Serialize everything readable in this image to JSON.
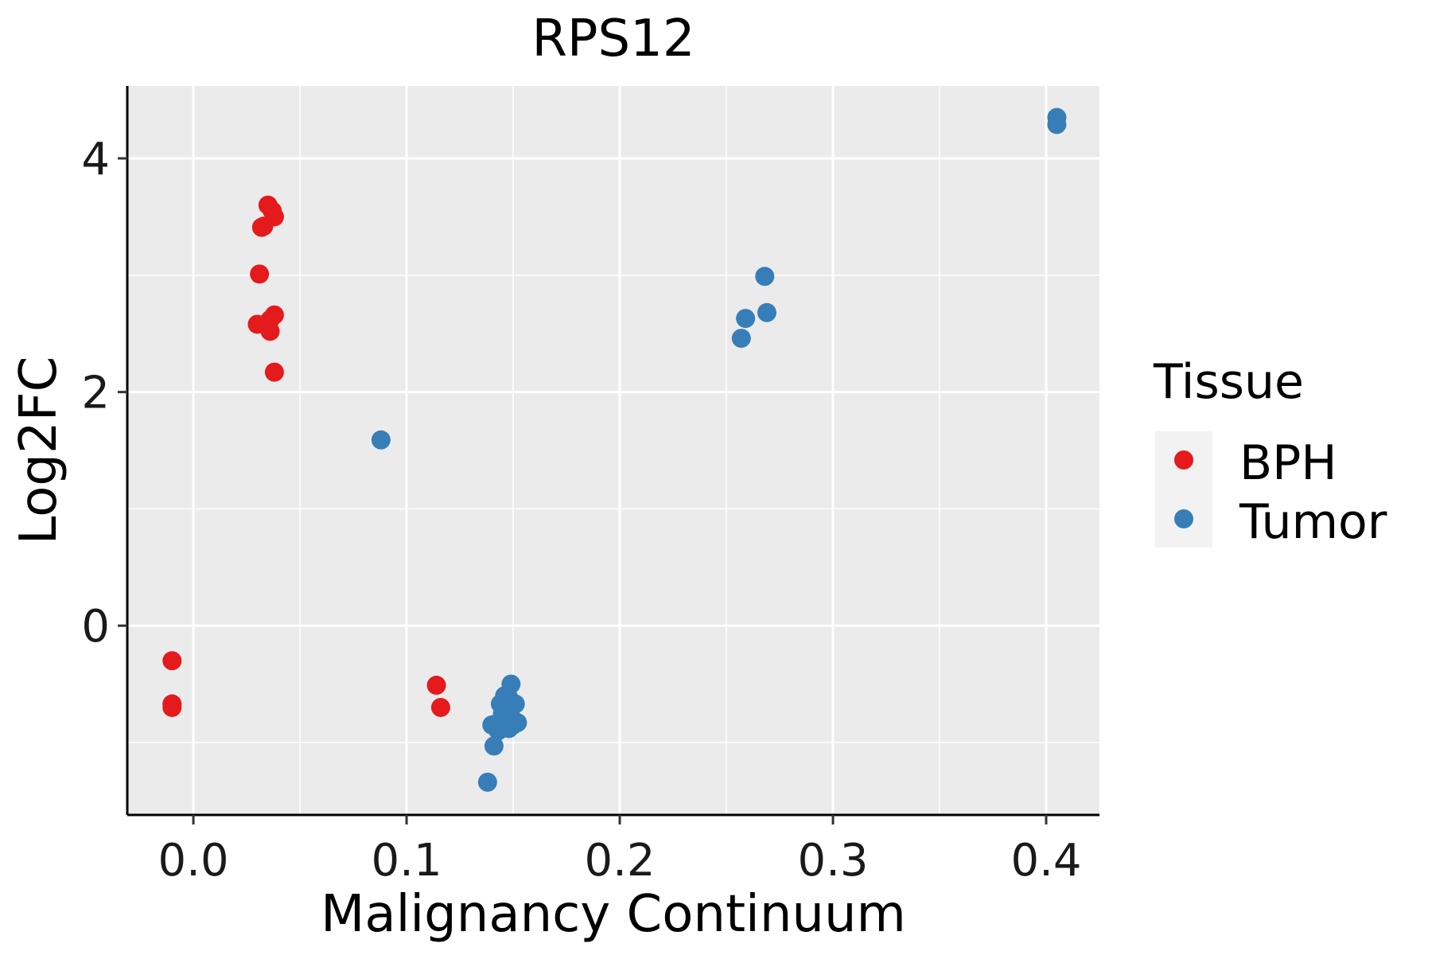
{
  "chart_data": {
    "type": "scatter",
    "title": "RPS12",
    "xlabel": "Malignancy Continuum",
    "ylabel": "Log2FC",
    "xlim": [
      -0.031,
      0.425
    ],
    "ylim": [
      -1.62,
      4.62
    ],
    "x_ticks": [
      0.0,
      0.1,
      0.2,
      0.3,
      0.4
    ],
    "x_tick_labels": [
      "0.0",
      "0.1",
      "0.2",
      "0.3",
      "0.4"
    ],
    "y_ticks": [
      0,
      2,
      4
    ],
    "y_tick_labels": [
      "0",
      "2",
      "4"
    ],
    "grid": true,
    "legend": {
      "title": "Tissue",
      "position": "right"
    },
    "series": [
      {
        "name": "BPH",
        "color": "#E41A1C",
        "points": [
          [
            -0.01,
            -0.3
          ],
          [
            -0.01,
            -0.67
          ],
          [
            -0.01,
            -0.7
          ],
          [
            0.035,
            3.6
          ],
          [
            0.037,
            3.55
          ],
          [
            0.038,
            3.5
          ],
          [
            0.032,
            3.41
          ],
          [
            0.033,
            3.42
          ],
          [
            0.031,
            3.01
          ],
          [
            0.03,
            2.58
          ],
          [
            0.034,
            2.58
          ],
          [
            0.038,
            2.66
          ],
          [
            0.036,
            2.62
          ],
          [
            0.036,
            2.52
          ],
          [
            0.038,
            2.17
          ],
          [
            0.114,
            -0.51
          ],
          [
            0.116,
            -0.7
          ]
        ]
      },
      {
        "name": "Tumor",
        "color": "#377EB8",
        "points": [
          [
            0.088,
            1.59
          ],
          [
            0.149,
            -0.5
          ],
          [
            0.146,
            -0.6
          ],
          [
            0.148,
            -0.62
          ],
          [
            0.144,
            -0.67
          ],
          [
            0.147,
            -0.7
          ],
          [
            0.151,
            -0.67
          ],
          [
            0.145,
            -0.75
          ],
          [
            0.149,
            -0.78
          ],
          [
            0.142,
            -0.84
          ],
          [
            0.146,
            -0.86
          ],
          [
            0.15,
            -0.85
          ],
          [
            0.152,
            -0.83
          ],
          [
            0.14,
            -0.85
          ],
          [
            0.143,
            -0.9
          ],
          [
            0.148,
            -0.88
          ],
          [
            0.141,
            -1.03
          ],
          [
            0.138,
            -1.34
          ],
          [
            0.257,
            2.46
          ],
          [
            0.259,
            2.63
          ],
          [
            0.269,
            2.68
          ],
          [
            0.268,
            2.99
          ],
          [
            0.405,
            4.35
          ],
          [
            0.405,
            4.29
          ]
        ]
      }
    ]
  }
}
